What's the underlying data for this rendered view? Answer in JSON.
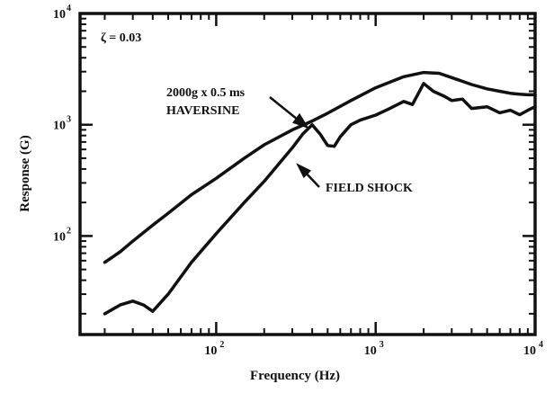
{
  "chart_data": {
    "type": "line",
    "x_scale": "log",
    "y_scale": "log",
    "xlabel": "Frequency (Hz)",
    "ylabel": "Response (G)",
    "xlim": [
      14,
      10000
    ],
    "ylim": [
      13,
      10000
    ],
    "x_ticks": [
      {
        "value": 100,
        "base": "10",
        "exp": "2"
      },
      {
        "value": 1000,
        "base": "10",
        "exp": "3"
      },
      {
        "value": 10000,
        "base": "10",
        "exp": "4"
      }
    ],
    "y_ticks": [
      {
        "value": 100,
        "base": "10",
        "exp": "2"
      },
      {
        "value": 1000,
        "base": "10",
        "exp": "3"
      },
      {
        "value": 10000,
        "base": "10",
        "exp": "4"
      }
    ],
    "annotations": [
      {
        "lines": [
          "2000g x 0.5 ms",
          "HAVERSINE"
        ]
      },
      {
        "lines": [
          "FIELD SHOCK"
        ]
      },
      {
        "lines": [
          "ζ = 0.03"
        ]
      }
    ],
    "series": [
      {
        "x": [
          20,
          25,
          30,
          40,
          50,
          70,
          100,
          150,
          200,
          300,
          400,
          500,
          700,
          1000,
          1500,
          2000,
          2500,
          3000,
          4000,
          5000,
          6000,
          7000,
          8000,
          9000,
          10000
        ],
        "y": [
          58,
          72,
          90,
          125,
          160,
          235,
          330,
          500,
          660,
          900,
          1080,
          1270,
          1650,
          2150,
          2700,
          2950,
          2900,
          2650,
          2300,
          2100,
          2000,
          1920,
          1880,
          1860,
          1860
        ]
      },
      {
        "x": [
          20,
          25,
          30,
          35,
          40,
          50,
          70,
          100,
          150,
          200,
          300,
          350,
          400,
          450,
          500,
          550,
          600,
          700,
          800,
          1000,
          1200,
          1500,
          1700,
          2000,
          2300,
          2700,
          3000,
          3500,
          4000,
          5000,
          6000,
          7000,
          8000,
          9000,
          10000
        ],
        "y": [
          20,
          24,
          26,
          24,
          21,
          30,
          58,
          105,
          200,
          310,
          620,
          830,
          1000,
          820,
          650,
          640,
          780,
          1000,
          1100,
          1220,
          1380,
          1620,
          1520,
          2350,
          2000,
          1800,
          1650,
          1700,
          1400,
          1450,
          1280,
          1350,
          1230,
          1350,
          1450
        ]
      }
    ]
  }
}
